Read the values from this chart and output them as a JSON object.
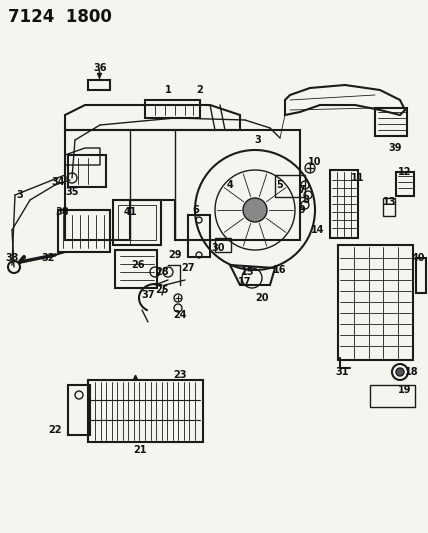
{
  "title": "7124  1800",
  "bg_color": "#f5f5f0",
  "line_color": "#1a1a1a",
  "label_color": "#111111",
  "fig_width": 4.28,
  "fig_height": 5.33,
  "dpi": 100,
  "title_fontsize": 12,
  "label_fontsize": 7.0,
  "label_bold_fontsize": 8.5
}
